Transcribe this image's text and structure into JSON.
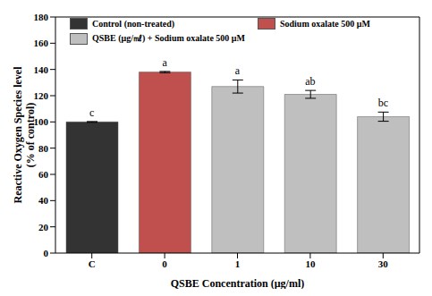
{
  "chart_data": {
    "type": "bar",
    "xlabel": "QSBE Concentration (μg/ml)",
    "ylabel": "Reactive Oxygen Species level\n(% of control)",
    "categories": [
      "C",
      "0",
      "1",
      "10",
      "30"
    ],
    "series": [
      {
        "name": "Control (non-treated)",
        "color": "#333333",
        "values": [
          100,
          null,
          null,
          null,
          null
        ],
        "errors": [
          0.3,
          null,
          null,
          null,
          null
        ]
      },
      {
        "name": "Sodium oxalate 500 μM",
        "color": "#c0504d",
        "values": [
          null,
          138,
          null,
          null,
          null
        ],
        "errors": [
          null,
          0.5,
          null,
          null,
          null
        ]
      },
      {
        "name": "QSBE (μg/㎖) + Sodium oxalate 500 μM",
        "color": "#bfbfbf",
        "values": [
          null,
          null,
          127,
          121,
          104
        ],
        "errors": [
          null,
          null,
          5,
          3,
          3.5
        ]
      }
    ],
    "annotations": [
      "c",
      "a",
      "a",
      "ab",
      "bc"
    ],
    "ylim": [
      0,
      180
    ],
    "yticks": [
      0,
      20,
      40,
      60,
      80,
      100,
      120,
      140,
      160,
      180
    ],
    "legend": "top-left",
    "grid": false
  }
}
